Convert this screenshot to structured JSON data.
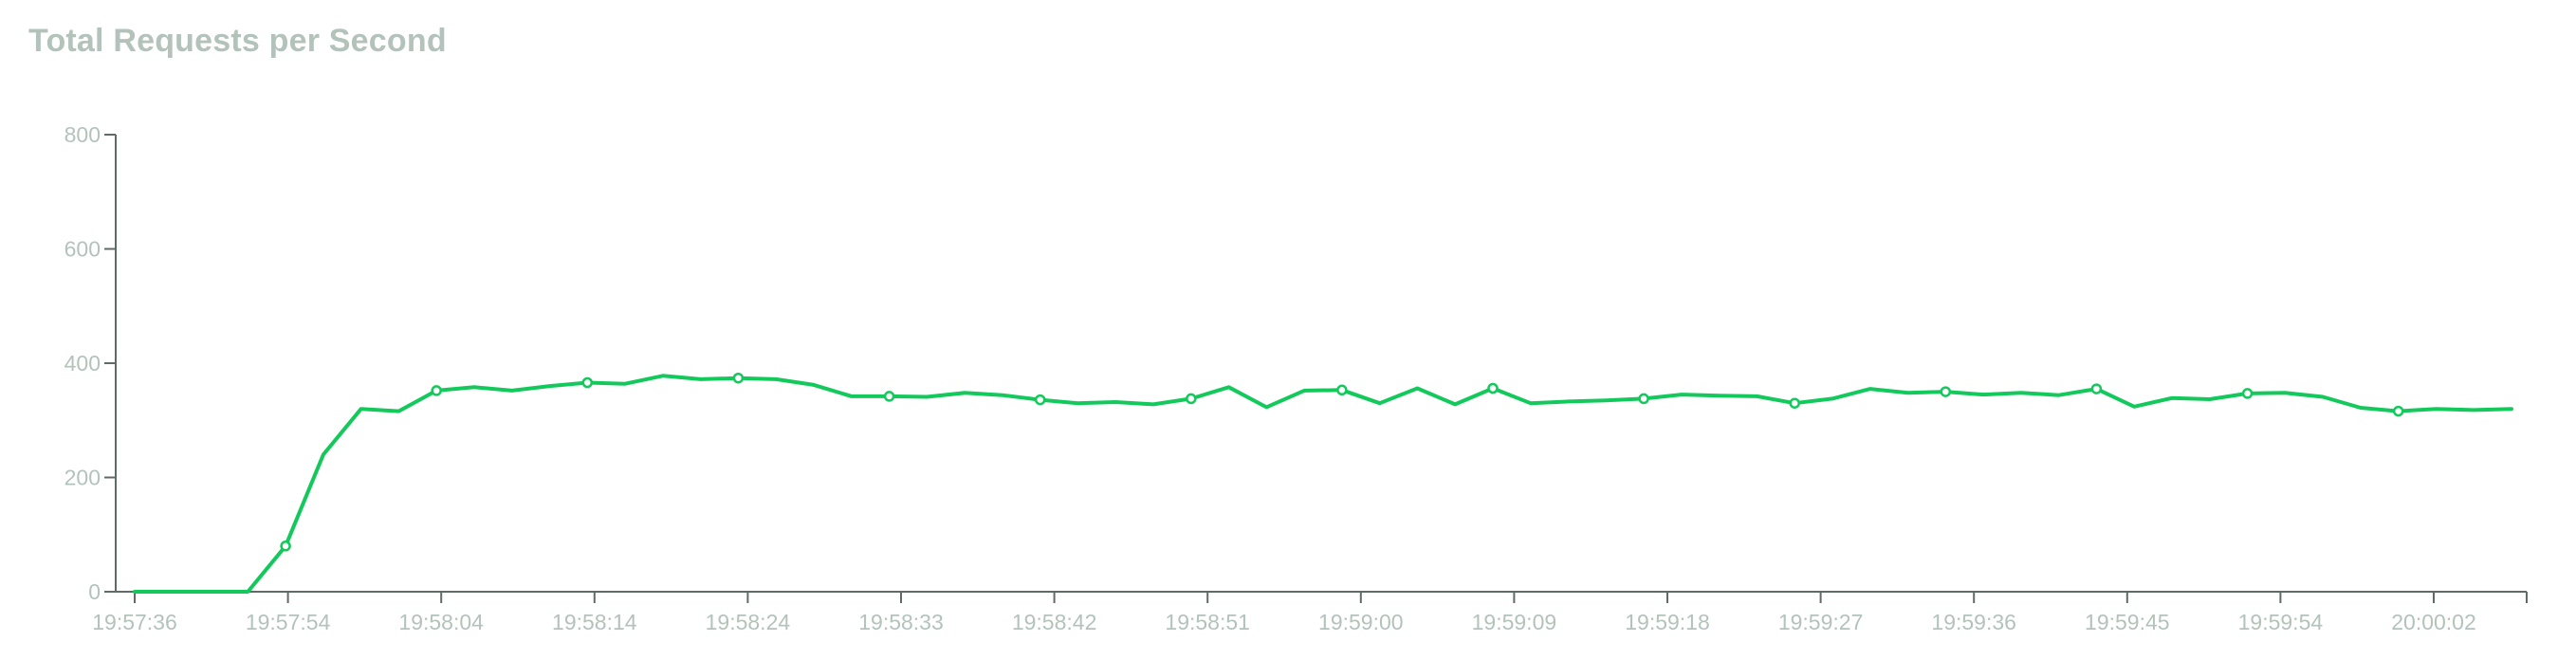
{
  "chart_data": {
    "type": "line",
    "title": "Total Requests per Second",
    "xlabel": "",
    "ylabel": "",
    "ylim": [
      0,
      800
    ],
    "y_ticks": [
      0,
      200,
      400,
      600,
      800
    ],
    "x_tick_labels": [
      "19:57:36",
      "19:57:54",
      "19:58:04",
      "19:58:14",
      "19:58:24",
      "19:58:33",
      "19:58:42",
      "19:58:51",
      "19:59:00",
      "19:59:09",
      "19:59:18",
      "19:59:27",
      "19:59:36",
      "19:59:45",
      "19:59:54",
      "20:00:02"
    ],
    "grid": false,
    "legend": "none",
    "line_color": "#13c95b",
    "series": [
      {
        "values": [
          0,
          0,
          0,
          0,
          80,
          240,
          320,
          316,
          352,
          358,
          352,
          360,
          366,
          364,
          378,
          372,
          374,
          372,
          362,
          342,
          342,
          341,
          348,
          344,
          336,
          330,
          332,
          328,
          338,
          358,
          323,
          352,
          353,
          330,
          356,
          328,
          356,
          330,
          333,
          335,
          338,
          345,
          343,
          342,
          330,
          338,
          355,
          348,
          350,
          345,
          348,
          344,
          355,
          324,
          339,
          337,
          347,
          348,
          341,
          322,
          316,
          320,
          318,
          320
        ],
        "marker_indices": [
          4,
          8,
          12,
          16,
          20,
          24,
          28,
          32,
          36,
          40,
          44,
          48,
          52,
          56,
          60
        ]
      }
    ]
  }
}
